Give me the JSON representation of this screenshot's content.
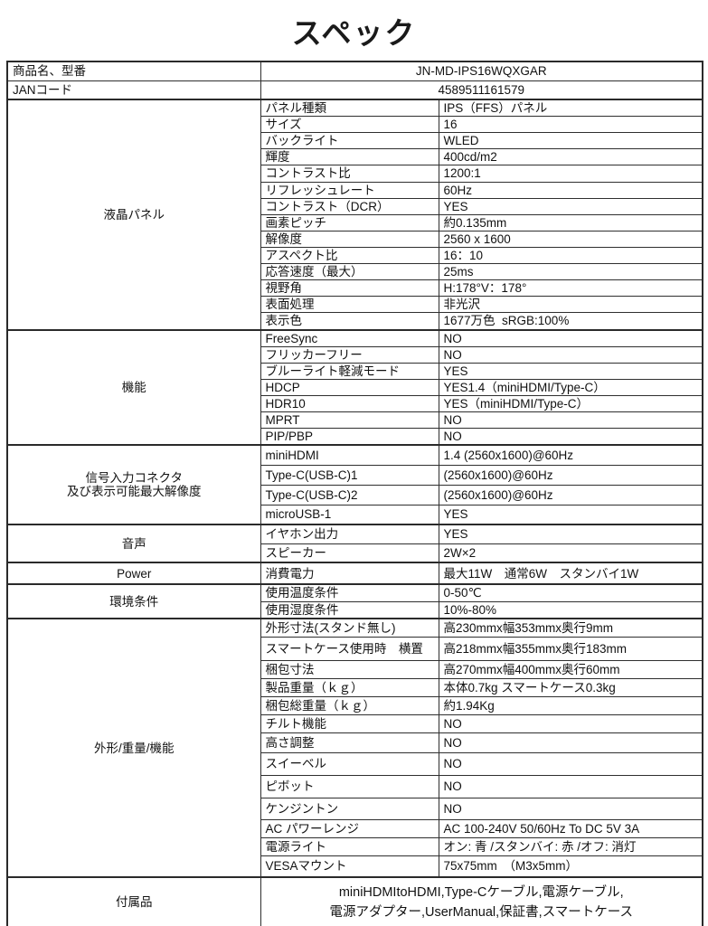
{
  "title": "スペック",
  "colors": {
    "background": "#ffffff",
    "text": "#111111",
    "border": "#2a2a2a"
  },
  "header_rows": [
    {
      "label": "商品名、型番",
      "value": "JN-MD-IPS16WQXGAR"
    },
    {
      "label": "JANコード",
      "value": "4589511161579"
    }
  ],
  "sections": [
    {
      "name": "液晶パネル",
      "rows": [
        {
          "label": "パネル種類",
          "value": "IPS（FFS）パネル"
        },
        {
          "label": "サイズ",
          "value": "16"
        },
        {
          "label": "バックライト",
          "value": "WLED"
        },
        {
          "label": "輝度",
          "value": "400cd/m2"
        },
        {
          "label": "コントラスト比",
          "value": "1200:1"
        },
        {
          "label": "リフレッシュレート",
          "value": "60Hz"
        },
        {
          "label": "コントラスト（DCR）",
          "value": "YES"
        },
        {
          "label": "画素ピッチ",
          "value": "約0.135mm"
        },
        {
          "label": "解像度",
          "value": "2560 x 1600"
        },
        {
          "label": "アスペクト比",
          "value": "16：10"
        },
        {
          "label": "応答速度（最大）",
          "value": "25ms"
        },
        {
          "label": "視野角",
          "value": "H:178°V：178°"
        },
        {
          "label": "表面処理",
          "value": "非光沢"
        },
        {
          "label": "表示色",
          "value": "1677万色  sRGB:100%"
        }
      ]
    },
    {
      "name": "機能",
      "rows": [
        {
          "label": "FreeSync",
          "value": "NO"
        },
        {
          "label": "フリッカーフリー",
          "value": "NO"
        },
        {
          "label": "ブルーライト軽減モード",
          "value": "YES"
        },
        {
          "label": "HDCP",
          "value": "YES1.4（miniHDMI/Type-C）"
        },
        {
          "label": "HDR10",
          "value": "YES（miniHDMI/Type-C）"
        },
        {
          "label": "MPRT",
          "value": "NO"
        },
        {
          "label": "PIP/PBP",
          "value": "NO"
        }
      ]
    },
    {
      "name": "信号入力コネクタ\n及び表示可能最大解像度",
      "rows": [
        {
          "label": "miniHDMI",
          "value": "1.4 (2560x1600)@60Hz"
        },
        {
          "label": "Type-C(USB-C)1",
          "value": "(2560x1600)@60Hz"
        },
        {
          "label": "Type-C(USB-C)2",
          "value": "(2560x1600)@60Hz"
        },
        {
          "label": "microUSB-1",
          "value": "YES"
        }
      ]
    },
    {
      "name": "音声",
      "rows": [
        {
          "label": "イヤホン出力",
          "value": "YES"
        },
        {
          "label": "スピーカー",
          "value": "2W×2"
        }
      ]
    },
    {
      "name": "Power",
      "rows": [
        {
          "label": "消費電力",
          "value": "最大11W　通常6W　スタンバイ1W"
        }
      ]
    },
    {
      "name": "環境条件",
      "rows": [
        {
          "label": "使用温度条件",
          "value": "0-50℃"
        },
        {
          "label": "使用湿度条件",
          "value": "10%-80%"
        }
      ]
    },
    {
      "name": "外形/重量/機能",
      "rows": [
        {
          "label": "外形寸法(スタンド無し)",
          "value": "高230mmx幅353mmx奥行9mm"
        },
        {
          "label": "スマートケース使用時　横置",
          "value": "高218mmx幅355mmx奥行183mm"
        },
        {
          "label": "梱包寸法",
          "value": "高270mmx幅400mmx奥行60mm"
        },
        {
          "label": "製品重量（ｋｇ）",
          "value": "本体0.7kg スマートケース0.3kg"
        },
        {
          "label": "梱包総重量（ｋｇ）",
          "value": "約1.94Kg"
        },
        {
          "label": "チルト機能",
          "value": "NO"
        },
        {
          "label": "高さ調整",
          "value": "NO"
        },
        {
          "label": "スイーベル",
          "value": "NO"
        },
        {
          "label": "ピボット",
          "value": "NO"
        },
        {
          "label": "ケンジントン",
          "value": "NO"
        },
        {
          "label": "AC パワーレンジ",
          "value": "AC 100-240V 50/60Hz To DC 5V 3A"
        },
        {
          "label": "電源ライト",
          "value": "オン: 青 /スタンバイ: 赤 /オフ: 消灯"
        },
        {
          "label": "VESAマウント",
          "value": "75x75mm　（M3x5mm）"
        }
      ]
    }
  ],
  "footer_row": {
    "label": "付属品",
    "value": "miniHDMItoHDMI,Type-Cケーブル,電源ケーブル,\n電源アダプター,UserManual,保証書,スマートケース"
  }
}
